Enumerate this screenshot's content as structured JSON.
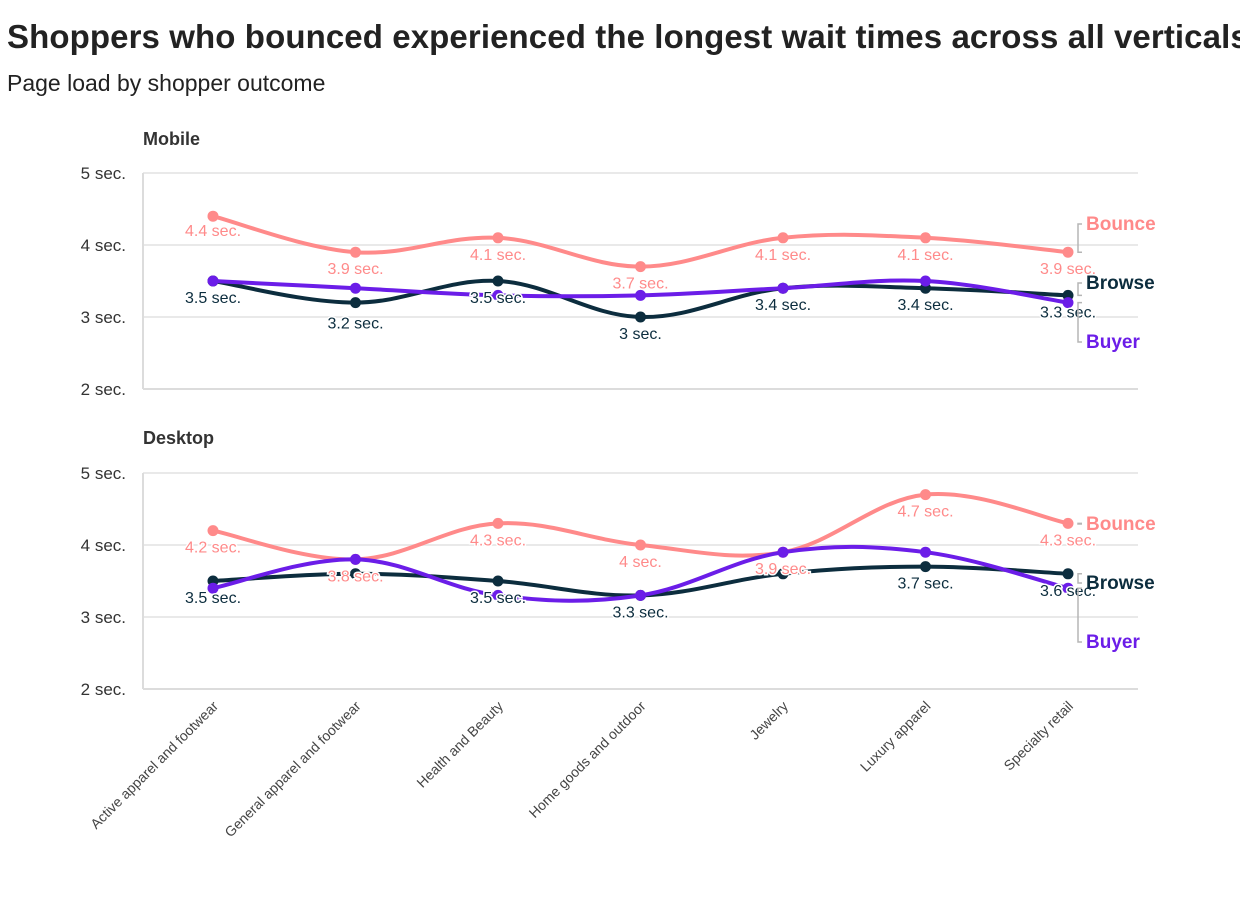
{
  "header": {
    "title": "Shoppers who bounced experienced the longest wait times across all verticals.",
    "subtitle": "Page load by shopper outcome"
  },
  "colors": {
    "Bounce": "#ff8a8a",
    "Browse": "#0c2d3e",
    "Buyer": "#6b1de8"
  },
  "chart_data": [
    {
      "type": "line",
      "title": "Mobile",
      "categories": [
        "Active apparel and footwear",
        "General apparel and footwear",
        "Health and Beauty",
        "Home goods and outdoor",
        "Jewelry",
        "Luxury apparel",
        "Specialty retail"
      ],
      "ylim": [
        2,
        5
      ],
      "yticks": [
        "2 sec.",
        "3 sec.",
        "4 sec.",
        "5 sec."
      ],
      "series": [
        {
          "name": "Bounce",
          "values": [
            4.4,
            3.9,
            4.1,
            3.7,
            4.1,
            4.1,
            3.9
          ],
          "labels": [
            "4.4 sec.",
            "3.9 sec.",
            "4.1 sec.",
            "3.7 sec.",
            "4.1 sec.",
            "4.1 sec.",
            "3.9 sec."
          ]
        },
        {
          "name": "Browse",
          "values": [
            3.5,
            3.2,
            3.5,
            3.0,
            3.4,
            3.4,
            3.3
          ],
          "labels": [
            "3.5 sec.",
            "3.2 sec.",
            "3.5 sec.",
            "3 sec.",
            "3.4 sec.",
            "3.4 sec.",
            "3.3 sec."
          ]
        },
        {
          "name": "Buyer",
          "values": [
            3.5,
            3.4,
            3.3,
            3.3,
            3.4,
            3.5,
            3.2
          ]
        }
      ]
    },
    {
      "type": "line",
      "title": "Desktop",
      "categories": [
        "Active apparel and footwear",
        "General apparel and footwear",
        "Health and Beauty",
        "Home goods and outdoor",
        "Jewelry",
        "Luxury apparel",
        "Specialty retail"
      ],
      "ylim": [
        2,
        5
      ],
      "yticks": [
        "2 sec.",
        "3 sec.",
        "4 sec.",
        "5 sec."
      ],
      "series": [
        {
          "name": "Bounce",
          "values": [
            4.2,
            3.8,
            4.3,
            4.0,
            3.9,
            4.7,
            4.3
          ],
          "labels": [
            "4.2 sec.",
            "3.8 sec.",
            "4.3 sec.",
            "4 sec.",
            "3.9 sec.",
            "4.7 sec.",
            "4.3 sec."
          ]
        },
        {
          "name": "Browse",
          "values": [
            3.5,
            3.6,
            3.5,
            3.3,
            3.6,
            3.7,
            3.6
          ],
          "labels": [
            "3.5 sec.",
            null,
            "3.5 sec.",
            "3.3 sec.",
            null,
            "3.7 sec.",
            "3.6 sec."
          ]
        },
        {
          "name": "Buyer",
          "values": [
            3.4,
            3.8,
            3.3,
            3.3,
            3.9,
            3.9,
            3.4
          ]
        }
      ]
    }
  ]
}
